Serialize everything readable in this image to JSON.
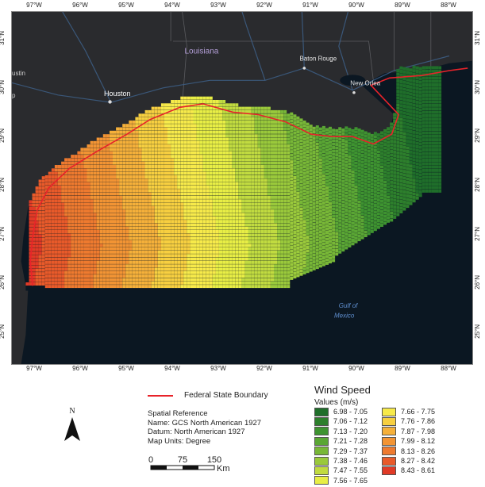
{
  "map": {
    "longitude_ticks": [
      "97°W",
      "96°W",
      "95°W",
      "94°W",
      "93°W",
      "92°W",
      "91°W",
      "90°W",
      "89°W",
      "88°W"
    ],
    "longitude_values": [
      -97,
      -96,
      -95,
      -94,
      -93,
      -92,
      -91,
      -90,
      -89,
      -88
    ],
    "latitude_ticks": [
      "31°N",
      "30°N",
      "29°N",
      "28°N",
      "27°N",
      "26°N",
      "25°N"
    ],
    "latitude_values": [
      31,
      30,
      29,
      28,
      27,
      26,
      25
    ],
    "extent": {
      "lon_min": -97.5,
      "lon_max": -87.5,
      "lat_min": 24.4,
      "lat_max": 31.6
    },
    "place_labels": {
      "state": "Louisiana",
      "houston": "Houston",
      "austin": "ustin",
      "baton_rouge": "Baton Rouge",
      "new_orleans": "New Orlea",
      "gulf": "Gulf of",
      "gulf2": "Mexico",
      "edge_label": "p"
    },
    "colors": {
      "land": "#2a2b2e",
      "water": "#0b1722",
      "boundary": "#e8232a",
      "state_border": "#5a5b5f",
      "road": "#3d5f86"
    }
  },
  "legend": {
    "title": "Wind Speed",
    "subtitle": "Values (m/s)",
    "classes": [
      {
        "label": "6.98 - 7.05",
        "color": "#1f6e2a"
      },
      {
        "label": "7.06 - 7.12",
        "color": "#2d7f2c"
      },
      {
        "label": "7.13 - 7.20",
        "color": "#3e9330"
      },
      {
        "label": "7.21 - 7.28",
        "color": "#5aa634"
      },
      {
        "label": "7.29 - 7.37",
        "color": "#78b737"
      },
      {
        "label": "7.38 - 7.46",
        "color": "#9ac93b"
      },
      {
        "label": "7.47 - 7.55",
        "color": "#c1db40"
      },
      {
        "label": "7.56 - 7.65",
        "color": "#e8ee45"
      },
      {
        "label": "7.66 - 7.75",
        "color": "#f7ea4a"
      },
      {
        "label": "7.76 - 7.86",
        "color": "#f7cf40"
      },
      {
        "label": "7.87 - 7.98",
        "color": "#f5b03a"
      },
      {
        "label": "7.99 - 8.12",
        "color": "#f29434"
      },
      {
        "label": "8.13 - 8.26",
        "color": "#ee7a2f"
      },
      {
        "label": "8.27 - 8.42",
        "color": "#e85a2a"
      },
      {
        "label": "8.43 - 8.61",
        "color": "#e03a26"
      }
    ]
  },
  "boundary_legend": {
    "label": "Federal State Boundary"
  },
  "spatial_reference": {
    "heading": "Spatial Reference",
    "name": "Name: GCS North American 1927",
    "datum": "Datum: North American 1927",
    "units": "Map Units: Degree"
  },
  "north_arrow": {
    "letter": "N"
  },
  "scale_bar": {
    "labels": [
      "0",
      "75",
      "150"
    ],
    "unit": "Km"
  }
}
